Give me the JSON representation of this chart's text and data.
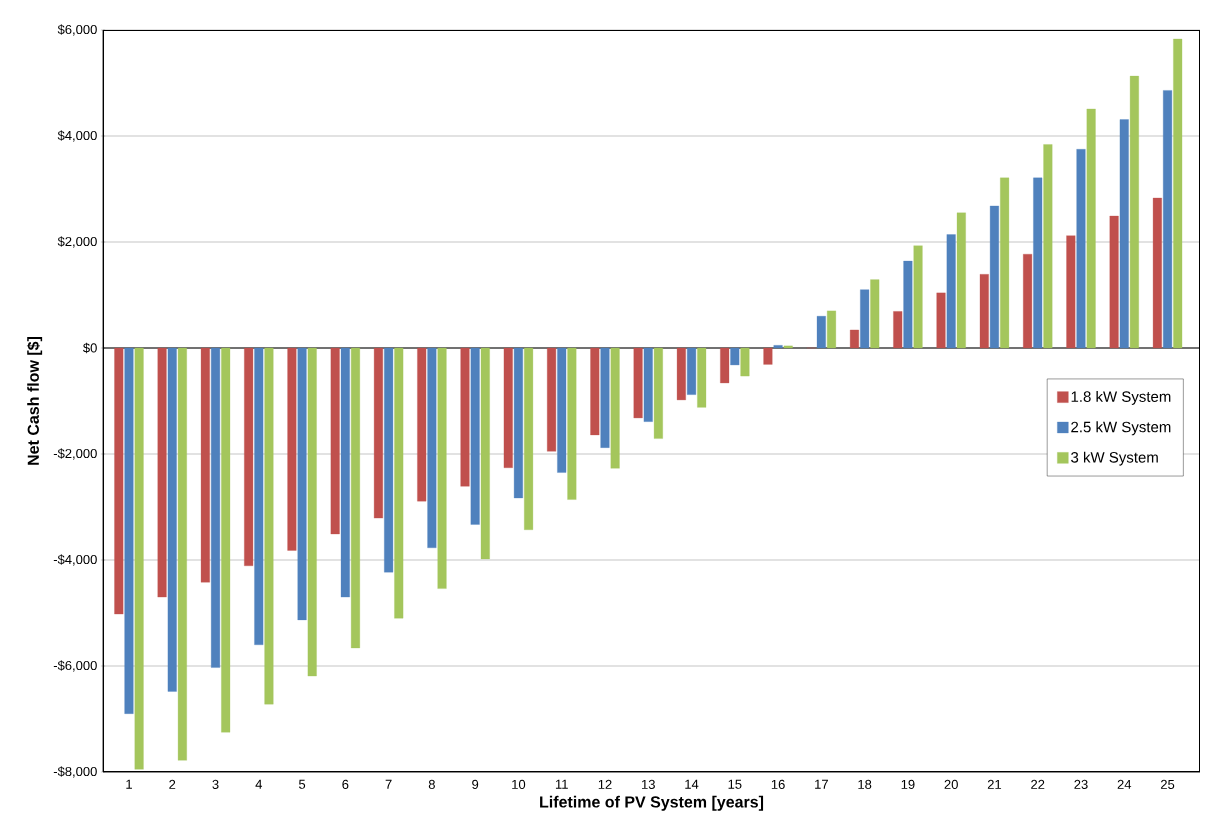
{
  "chart_data": {
    "type": "bar",
    "xlabel": "Lifetime of PV System [years]",
    "ylabel": "Net Cash flow [$]",
    "categories": [
      "1",
      "2",
      "3",
      "4",
      "5",
      "6",
      "7",
      "8",
      "9",
      "10",
      "11",
      "12",
      "13",
      "14",
      "15",
      "16",
      "17",
      "18",
      "19",
      "20",
      "21",
      "22",
      "23",
      "24",
      "25"
    ],
    "series": [
      {
        "name": "1.8 kW System",
        "color": "#c0504d",
        "values": [
          -5020,
          -4700,
          -4420,
          -4110,
          -3820,
          -3510,
          -3210,
          -2890,
          -2610,
          -2260,
          -1950,
          -1640,
          -1320,
          -980,
          -660,
          -310,
          0,
          340,
          690,
          1040,
          1390,
          1770,
          2120,
          2490,
          2830
        ]
      },
      {
        "name": "2.5 kW System",
        "color": "#4f81bd",
        "values": [
          -6900,
          -6480,
          -6030,
          -5600,
          -5130,
          -4700,
          -4230,
          -3770,
          -3330,
          -2830,
          -2350,
          -1880,
          -1390,
          -880,
          -320,
          50,
          600,
          1100,
          1640,
          2140,
          2680,
          3210,
          3750,
          4310,
          4860
        ]
      },
      {
        "name": "3 kW System",
        "color": "#a4c65c",
        "values": [
          -7950,
          -7780,
          -7250,
          -6720,
          -6190,
          -5660,
          -5100,
          -4540,
          -3980,
          -3430,
          -2860,
          -2270,
          -1710,
          -1120,
          -530,
          40,
          700,
          1290,
          1930,
          2550,
          3210,
          3840,
          4510,
          5130,
          5830
        ]
      }
    ],
    "ylim": [
      -8000,
      6000
    ],
    "yticks": [
      {
        "value": -8000,
        "label": "-$8,000"
      },
      {
        "value": -6000,
        "label": "-$6,000"
      },
      {
        "value": -4000,
        "label": "-$4,000"
      },
      {
        "value": -2000,
        "label": "-$2,000"
      },
      {
        "value": 0,
        "label": "$0"
      },
      {
        "value": 2000,
        "label": "$2,000"
      },
      {
        "value": 4000,
        "label": "$4,000"
      },
      {
        "value": 6000,
        "label": "$6,000"
      }
    ],
    "grid": "y",
    "legend": "right"
  }
}
